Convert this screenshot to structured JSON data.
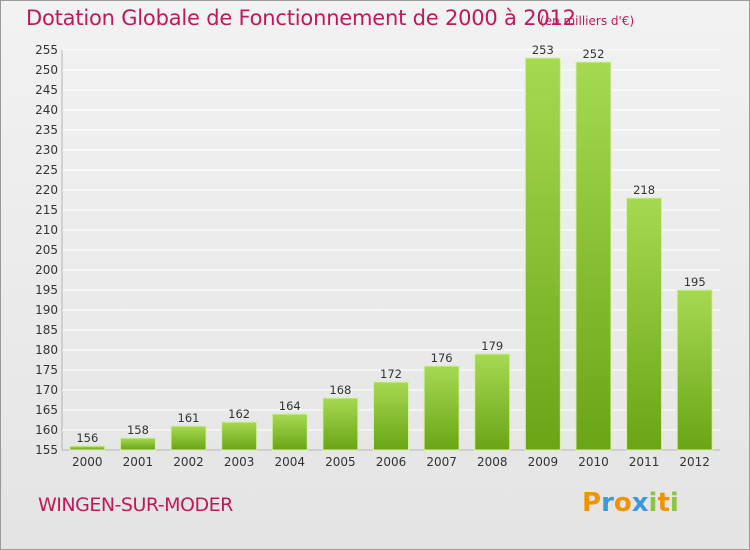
{
  "chart_data": {
    "type": "bar",
    "title": "Dotation Globale de Fonctionnement de 2000 à 2012",
    "subtitle": "(en milliers d'€)",
    "categories": [
      "2000",
      "2001",
      "2002",
      "2003",
      "2004",
      "2005",
      "2006",
      "2007",
      "2008",
      "2009",
      "2010",
      "2011",
      "2012"
    ],
    "values": [
      156,
      158,
      161,
      162,
      164,
      168,
      172,
      176,
      179,
      253,
      252,
      218,
      195
    ],
    "ylim": [
      155,
      255
    ],
    "ytick_step": 5,
    "xlabel": "",
    "ylabel": "",
    "grid": true,
    "colors": {
      "bar_light": "#a6d952",
      "bar_dark": "#6aa516",
      "bar_edge": "#d8f0a8",
      "grid": "#ffffff",
      "text": "#333333",
      "accent": "#c2185b"
    }
  },
  "footer": {
    "commune": "WINGEN-SUR-MODER",
    "logo_letters": [
      "P",
      "r",
      "o",
      "x",
      "i",
      "t",
      "i"
    ],
    "logo_colors": [
      "#f39200",
      "#3a9ad9",
      "#f39200",
      "#3a9ad9",
      "#8cc63f",
      "#f39200",
      "#8cc63f"
    ]
  }
}
